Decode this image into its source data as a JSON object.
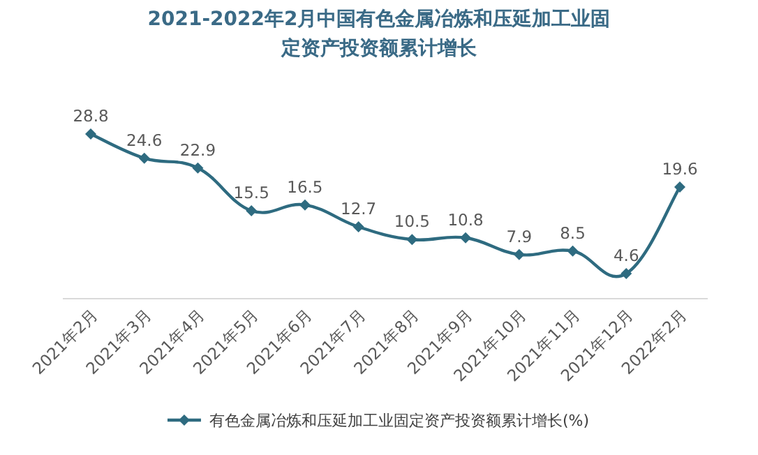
{
  "chart_data": {
    "type": "line",
    "title": "2021-2022年2月中国有色金属冶炼和压延加工业固定资产投资额累计增长",
    "categories": [
      "2021年2月",
      "2021年3月",
      "2021年4月",
      "2021年5月",
      "2021年6月",
      "2021年7月",
      "2021年8月",
      "2021年9月",
      "2021年10月",
      "2021年11月",
      "2021年12月",
      "2022年2月"
    ],
    "series": [
      {
        "name": "有色金属冶炼和压延加工业固定资产投资额累计增长(%)",
        "color": "#2e6b80",
        "values": [
          28.8,
          24.6,
          22.9,
          15.5,
          16.5,
          12.7,
          10.5,
          10.8,
          7.9,
          8.5,
          4.6,
          19.6
        ]
      }
    ],
    "data_labels": true,
    "marker": "diamond",
    "legend": "bottom",
    "grid": false
  }
}
